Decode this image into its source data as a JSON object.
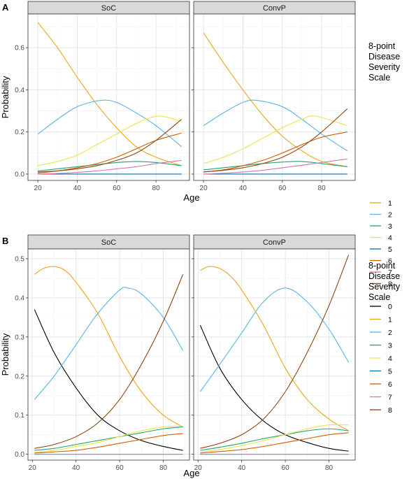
{
  "chart_data": [
    {
      "type": "line",
      "panel_letter": "A",
      "facets": [
        "SoC",
        "ConvP"
      ],
      "xlabel": "Age",
      "ylabel": "Probability",
      "xlim": [
        15,
        97
      ],
      "ylim": [
        -0.03,
        0.76
      ],
      "x_ticks": [
        20,
        40,
        60,
        80
      ],
      "y_ticks": [
        0.0,
        0.2,
        0.4,
        0.6
      ],
      "y_tick_labels": [
        "0.0",
        "0.2",
        "0.4",
        "0.6"
      ],
      "grid": true,
      "legend": {
        "title": "8-point Disease Severity Scale",
        "title_lines": [
          "8-point",
          "Disease",
          "Severity",
          "Scale"
        ],
        "position": "right",
        "entries": [
          "1",
          "2",
          "3",
          "4",
          "5",
          "6",
          "7",
          "8"
        ]
      },
      "series": [
        {
          "name": "1",
          "color": "#E6A817",
          "SoC": {
            "x": [
              20,
              30,
              40,
              50,
              60,
              70,
              80,
              93
            ],
            "y": [
              0.72,
              0.6,
              0.46,
              0.33,
              0.22,
              0.13,
              0.08,
              0.04
            ]
          },
          "ConvP": {
            "x": [
              20,
              30,
              40,
              50,
              60,
              70,
              80,
              93
            ],
            "y": [
              0.67,
              0.53,
              0.4,
              0.28,
              0.18,
              0.11,
              0.06,
              0.035
            ]
          }
        },
        {
          "name": "2",
          "color": "#5BB4E5",
          "SoC": {
            "x": [
              20,
              30,
              40,
              52,
              60,
              70,
              80,
              93
            ],
            "y": [
              0.19,
              0.26,
              0.32,
              0.35,
              0.34,
              0.29,
              0.23,
              0.13
            ]
          },
          "ConvP": {
            "x": [
              20,
              30,
              40,
              47,
              60,
              70,
              80,
              93
            ],
            "y": [
              0.23,
              0.29,
              0.34,
              0.35,
              0.32,
              0.26,
              0.19,
              0.11
            ]
          }
        },
        {
          "name": "3",
          "color": "#1FA37A",
          "SoC": {
            "x": [
              20,
              30,
              40,
              50,
              60,
              70,
              80,
              93
            ],
            "y": [
              0.015,
              0.025,
              0.035,
              0.045,
              0.055,
              0.06,
              0.055,
              0.04
            ]
          },
          "ConvP": {
            "x": [
              20,
              30,
              40,
              50,
              60,
              70,
              80,
              93
            ],
            "y": [
              0.02,
              0.03,
              0.04,
              0.05,
              0.057,
              0.06,
              0.05,
              0.035
            ]
          }
        },
        {
          "name": "4",
          "color": "#F0E442",
          "SoC": {
            "x": [
              20,
              30,
              40,
              50,
              60,
              70,
              81,
              93
            ],
            "y": [
              0.04,
              0.06,
              0.09,
              0.14,
              0.19,
              0.24,
              0.275,
              0.25
            ]
          },
          "ConvP": {
            "x": [
              20,
              30,
              40,
              50,
              60,
              70,
              77,
              93
            ],
            "y": [
              0.05,
              0.08,
              0.12,
              0.17,
              0.22,
              0.26,
              0.275,
              0.23
            ]
          }
        },
        {
          "name": "5",
          "color": "#0072B2",
          "SoC": {
            "x": [
              20,
              93
            ],
            "y": [
              0.0,
              0.0
            ]
          },
          "ConvP": {
            "x": [
              20,
              93
            ],
            "y": [
              0.0,
              0.0
            ]
          }
        },
        {
          "name": "6",
          "color": "#D55E00",
          "SoC": {
            "x": [
              20,
              30,
              40,
              50,
              60,
              70,
              80,
              93
            ],
            "y": [
              0.005,
              0.015,
              0.03,
              0.05,
              0.08,
              0.12,
              0.16,
              0.195
            ]
          },
          "ConvP": {
            "x": [
              20,
              30,
              40,
              50,
              60,
              70,
              80,
              93
            ],
            "y": [
              0.01,
              0.02,
              0.04,
              0.065,
              0.1,
              0.14,
              0.175,
              0.2
            ]
          }
        },
        {
          "name": "7",
          "color": "#CC79A7",
          "SoC": {
            "x": [
              20,
              30,
              40,
              50,
              60,
              70,
              80,
              93
            ],
            "y": [
              0.0,
              0.003,
              0.008,
              0.015,
              0.025,
              0.035,
              0.05,
              0.065
            ]
          },
          "ConvP": {
            "x": [
              20,
              30,
              40,
              50,
              60,
              70,
              80,
              93
            ],
            "y": [
              0.0,
              0.004,
              0.01,
              0.018,
              0.03,
              0.042,
              0.055,
              0.072
            ]
          }
        },
        {
          "name": "8",
          "color": "#8B4513",
          "SoC": {
            "x": [
              20,
              30,
              40,
              50,
              60,
              70,
              80,
              93
            ],
            "y": [
              0.01,
              0.015,
              0.025,
              0.04,
              0.065,
              0.1,
              0.16,
              0.26
            ]
          },
          "ConvP": {
            "x": [
              20,
              30,
              40,
              50,
              60,
              70,
              80,
              93
            ],
            "y": [
              0.01,
              0.018,
              0.03,
              0.05,
              0.08,
              0.13,
              0.2,
              0.31
            ]
          }
        }
      ]
    },
    {
      "type": "line",
      "panel_letter": "B",
      "facets": [
        "SoC",
        "ConvP"
      ],
      "xlabel": "Age",
      "ylabel": "Probability",
      "xlim": [
        18,
        92
      ],
      "ylim": [
        -0.015,
        0.525
      ],
      "x_ticks": [
        20,
        40,
        60,
        80
      ],
      "y_ticks": [
        0.0,
        0.1,
        0.2,
        0.3,
        0.4,
        0.5
      ],
      "y_tick_labels": [
        "0.0",
        "0.1",
        "0.2",
        "0.3",
        "0.4",
        "0.5"
      ],
      "grid": true,
      "legend": {
        "title": "8-point Disease Severity Scale",
        "title_lines": [
          "8-point",
          "Disease",
          "Severity",
          "Scale"
        ],
        "position": "right",
        "entries": [
          "0",
          "1",
          "2",
          "3",
          "4",
          "5",
          "6",
          "7",
          "8"
        ]
      },
      "series": [
        {
          "name": "0",
          "color": "#000000",
          "SoC": {
            "x": [
              21,
              30,
              40,
              50,
              60,
              70,
              80,
              89
            ],
            "y": [
              0.37,
              0.26,
              0.17,
              0.1,
              0.06,
              0.035,
              0.02,
              0.01
            ]
          },
          "ConvP": {
            "x": [
              21,
              30,
              40,
              50,
              60,
              70,
              80,
              89
            ],
            "y": [
              0.33,
              0.22,
              0.14,
              0.085,
              0.05,
              0.03,
              0.015,
              0.008
            ]
          }
        },
        {
          "name": "1",
          "color": "#E6A817",
          "SoC": {
            "x": [
              21,
              25,
              30,
              35,
              40,
              50,
              60,
              70,
              80,
              89
            ],
            "y": [
              0.46,
              0.475,
              0.48,
              0.47,
              0.44,
              0.36,
              0.25,
              0.16,
              0.1,
              0.07
            ]
          },
          "ConvP": {
            "x": [
              21,
              25,
              30,
              35,
              40,
              50,
              60,
              70,
              80,
              89
            ],
            "y": [
              0.47,
              0.48,
              0.475,
              0.455,
              0.42,
              0.33,
              0.22,
              0.14,
              0.09,
              0.06
            ]
          }
        },
        {
          "name": "2",
          "color": "#5BB4E5",
          "SoC": {
            "x": [
              21,
              30,
              40,
              50,
              60,
              64,
              70,
              80,
              89
            ],
            "y": [
              0.14,
              0.2,
              0.28,
              0.36,
              0.42,
              0.425,
              0.41,
              0.35,
              0.265
            ]
          },
          "ConvP": {
            "x": [
              21,
              30,
              40,
              50,
              60,
              70,
              80,
              89
            ],
            "y": [
              0.16,
              0.23,
              0.31,
              0.39,
              0.425,
              0.39,
              0.32,
              0.235
            ]
          }
        },
        {
          "name": "3",
          "color": "#1FA37A",
          "SoC": {
            "x": [
              21,
              30,
              40,
              50,
              60,
              70,
              80,
              89
            ],
            "y": [
              0.01,
              0.015,
              0.025,
              0.035,
              0.045,
              0.055,
              0.065,
              0.07
            ]
          },
          "ConvP": {
            "x": [
              21,
              30,
              40,
              50,
              60,
              70,
              80,
              89
            ],
            "y": [
              0.01,
              0.018,
              0.028,
              0.04,
              0.05,
              0.06,
              0.065,
              0.06
            ]
          }
        },
        {
          "name": "4",
          "color": "#F0E442",
          "SoC": {
            "x": [
              21,
              30,
              40,
              50,
              60,
              70,
              80,
              89
            ],
            "y": [
              0.005,
              0.01,
              0.02,
              0.03,
              0.045,
              0.06,
              0.07,
              0.072
            ]
          },
          "ConvP": {
            "x": [
              21,
              30,
              40,
              50,
              60,
              70,
              80,
              89
            ],
            "y": [
              0.006,
              0.012,
              0.022,
              0.035,
              0.05,
              0.065,
              0.075,
              0.075
            ]
          }
        },
        {
          "name": "5",
          "color": "#0072B2",
          "SoC": {
            "x": [
              21,
              89
            ],
            "y": [
              0.0,
              0.0
            ]
          },
          "ConvP": {
            "x": [
              21,
              89
            ],
            "y": [
              0.0,
              0.0
            ]
          }
        },
        {
          "name": "6",
          "color": "#D55E00",
          "SoC": {
            "x": [
              21,
              30,
              40,
              50,
              60,
              70,
              80,
              89
            ],
            "y": [
              0.003,
              0.006,
              0.01,
              0.018,
              0.028,
              0.038,
              0.048,
              0.053
            ]
          },
          "ConvP": {
            "x": [
              21,
              30,
              40,
              50,
              60,
              70,
              80,
              89
            ],
            "y": [
              0.003,
              0.007,
              0.012,
              0.02,
              0.03,
              0.04,
              0.05,
              0.055
            ]
          }
        },
        {
          "name": "7",
          "color": "#CC79A7",
          "SoC": {
            "x": [
              21,
              89
            ],
            "y": [
              0.0,
              0.0
            ]
          },
          "ConvP": {
            "x": [
              21,
              89
            ],
            "y": [
              0.0,
              0.0
            ]
          }
        },
        {
          "name": "8",
          "color": "#8B4513",
          "SoC": {
            "x": [
              21,
              30,
              40,
              50,
              60,
              70,
              80,
              89
            ],
            "y": [
              0.015,
              0.025,
              0.045,
              0.08,
              0.14,
              0.23,
              0.34,
              0.46
            ]
          },
          "ConvP": {
            "x": [
              21,
              30,
              40,
              50,
              60,
              70,
              80,
              89
            ],
            "y": [
              0.015,
              0.028,
              0.05,
              0.09,
              0.16,
              0.26,
              0.38,
              0.51
            ]
          }
        }
      ]
    }
  ]
}
